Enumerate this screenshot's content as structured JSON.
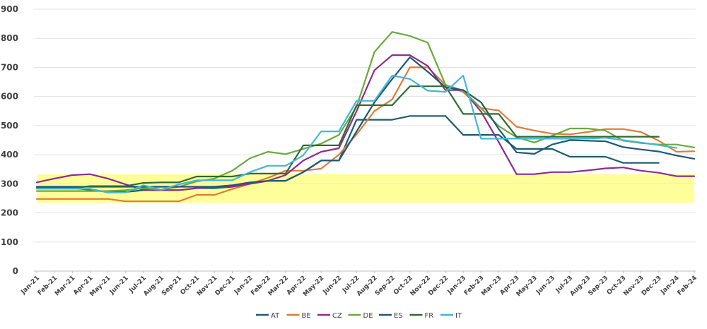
{
  "chart_data": {
    "type": "line",
    "title": "",
    "xlabel": "",
    "ylabel": "",
    "ylim": [
      0,
      900
    ],
    "yticks": [
      0,
      100,
      200,
      300,
      400,
      500,
      600,
      700,
      800,
      900
    ],
    "grid": "horizontal",
    "legend_position": "bottom",
    "band": {
      "from": 235,
      "to": 333,
      "color": "#ffff99"
    },
    "categories": [
      "Jan-21",
      "Feb-21",
      "Mar-21",
      "Apr-21",
      "May-21",
      "Jun-21",
      "Jul-21",
      "Aug-21",
      "Sep-21",
      "Oct-21",
      "Nov-21",
      "Dec-21",
      "Jan-22",
      "Feb-22",
      "Mar-22",
      "Apr-22",
      "May-22",
      "Jun-22",
      "Jul-22",
      "Aug-22",
      "Sep-22",
      "Oct-22",
      "Nov-22",
      "Dec-22",
      "Jan-23",
      "Feb-23",
      "Mar-23",
      "Apr-23",
      "May-23",
      "Jun-23",
      "Jul-23",
      "Aug-23",
      "Sep-23",
      "Oct-23",
      "Nov-23",
      "Dec-23",
      "Jan-24",
      "Feb-24"
    ],
    "series": [
      {
        "name": "AT",
        "color": "#1f5c6e",
        "values": [
          285,
          285,
          285,
          280,
          272,
          272,
          278,
          278,
          278,
          285,
          285,
          290,
          300,
          310,
          310,
          340,
          380,
          380,
          520,
          520,
          520,
          533,
          533,
          533,
          468,
          468,
          468,
          420,
          420,
          420,
          393,
          393,
          393,
          372,
          372,
          372,
          null,
          null
        ]
      },
      {
        "name": "BE",
        "color": "#e07b39",
        "values": [
          248,
          248,
          248,
          248,
          248,
          240,
          240,
          240,
          240,
          262,
          262,
          282,
          300,
          320,
          345,
          345,
          352,
          400,
          470,
          550,
          590,
          700,
          700,
          640,
          615,
          560,
          552,
          496,
          483,
          472,
          470,
          478,
          488,
          488,
          478,
          448,
          410,
          412
        ]
      },
      {
        "name": "CZ",
        "color": "#8e2c8e",
        "values": [
          305,
          318,
          330,
          333,
          318,
          298,
          280,
          278,
          278,
          285,
          290,
          290,
          300,
          310,
          330,
          380,
          410,
          422,
          550,
          690,
          742,
          742,
          705,
          622,
          622,
          548,
          443,
          333,
          333,
          340,
          340,
          346,
          353,
          356,
          345,
          338,
          326,
          326
        ]
      },
      {
        "name": "DE",
        "color": "#6aaa3c",
        "values": [
          275,
          275,
          275,
          275,
          275,
          278,
          285,
          280,
          290,
          308,
          318,
          345,
          388,
          410,
          402,
          420,
          438,
          468,
          565,
          753,
          822,
          808,
          785,
          640,
          620,
          560,
          498,
          460,
          442,
          465,
          490,
          490,
          483,
          448,
          440,
          435,
          435,
          425
        ]
      },
      {
        "name": "ES",
        "color": "#1e5878",
        "values": [
          290,
          290,
          290,
          290,
          290,
          290,
          290,
          290,
          290,
          290,
          290,
          295,
          305,
          310,
          310,
          340,
          380,
          380,
          480,
          580,
          660,
          735,
          685,
          632,
          622,
          580,
          488,
          408,
          403,
          435,
          450,
          448,
          446,
          426,
          418,
          411,
          397,
          386
        ]
      },
      {
        "name": "FR",
        "color": "#2f6b34",
        "values": [
          285,
          285,
          285,
          292,
          292,
          292,
          303,
          305,
          305,
          325,
          325,
          325,
          335,
          335,
          335,
          432,
          432,
          432,
          570,
          570,
          570,
          635,
          635,
          635,
          540,
          540,
          540,
          462,
          462,
          462,
          462,
          462,
          462,
          462,
          462,
          462,
          null,
          null
        ]
      },
      {
        "name": "IT",
        "color": "#45b5d8",
        "values": [
          283,
          283,
          283,
          283,
          270,
          270,
          295,
          280,
          298,
          312,
          312,
          312,
          340,
          362,
          362,
          398,
          480,
          480,
          585,
          585,
          672,
          660,
          620,
          616,
          672,
          455,
          455,
          455,
          455,
          455,
          455,
          455,
          458,
          450,
          442,
          433,
          423,
          null
        ]
      }
    ]
  }
}
